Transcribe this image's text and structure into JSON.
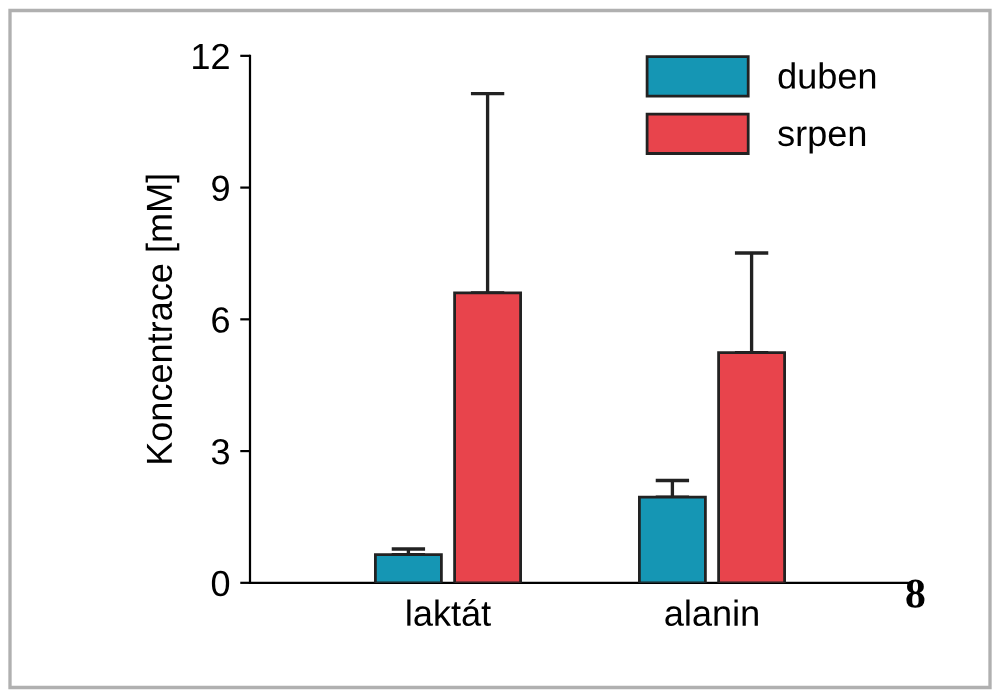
{
  "chart_data": {
    "type": "bar",
    "ylabel": "Koncentrace [mM]",
    "categories": [
      "laktát",
      "alanin"
    ],
    "series": [
      {
        "name": "duben",
        "color": "#1596b4",
        "values": [
          0.64,
          1.95
        ],
        "errors": [
          [
            0.64,
            0.77
          ],
          [
            1.95,
            2.33
          ]
        ]
      },
      {
        "name": "srpen",
        "color": "#e8444c",
        "values": [
          6.6,
          5.24
        ],
        "errors": [
          [
            6.6,
            11.14
          ],
          [
            5.24,
            7.51
          ]
        ]
      }
    ],
    "ylim": [
      0,
      12
    ],
    "yticks": [
      0,
      3,
      6,
      9,
      12
    ],
    "grid": false,
    "legend": "top right",
    "annotations": [
      "8"
    ]
  }
}
